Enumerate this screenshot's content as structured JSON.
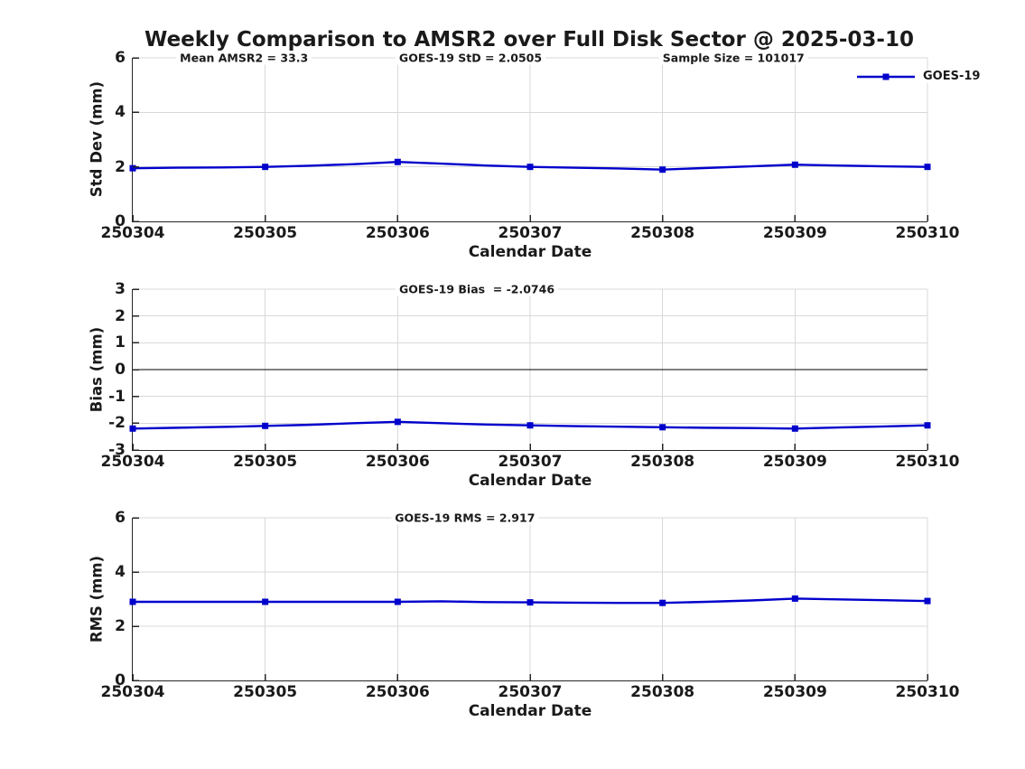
{
  "figure_title": "Weekly Comparison to AMSR2 over Full Disk Sector @ 2025-03-10",
  "colors": {
    "series_line": "#0000CC",
    "grid": "#D9D9D9",
    "axis": "#262626",
    "zero_line": "#000000",
    "text": "#1A1A1A"
  },
  "legend": {
    "label": "GOES-19"
  },
  "x_axis": {
    "label": "Calendar Date",
    "tick_labels": [
      "250304",
      "250305",
      "250306",
      "250307",
      "250308",
      "250309",
      "250310"
    ]
  },
  "chart_data": [
    {
      "type": "line",
      "name": "std-dev",
      "ylabel": "Std Dev (mm)",
      "xlabel": "Calendar Date",
      "ylim": [
        0,
        6
      ],
      "yticks": [
        0,
        2,
        4,
        6
      ],
      "grid": true,
      "annotations": [
        {
          "text": "Mean AMSR2 = 33.3",
          "x_pct": 14
        },
        {
          "text": "GOES-19 StD = 2.0505",
          "x_pct": 42.5
        },
        {
          "text": "Sample Size = 101017",
          "x_pct": 75.6
        }
      ],
      "series": [
        {
          "name": "GOES-19",
          "marker": "square",
          "categories": [
            "250304",
            "250305",
            "250306",
            "250307",
            "250308",
            "250309",
            "250310"
          ],
          "values": [
            1.95,
            2.0,
            2.18,
            2.0,
            1.9,
            2.08,
            2.0
          ],
          "line_x": [
            0,
            0.33,
            0.67,
            1,
            1.33,
            1.67,
            2,
            2.33,
            2.67,
            3,
            3.33,
            3.67,
            4,
            4.33,
            4.67,
            5,
            5.33,
            5.67,
            6
          ],
          "line_y": [
            1.95,
            1.97,
            1.98,
            2.0,
            2.04,
            2.1,
            2.18,
            2.12,
            2.05,
            2.0,
            1.97,
            1.94,
            1.9,
            1.96,
            2.02,
            2.08,
            2.05,
            2.02,
            2.0
          ]
        }
      ]
    },
    {
      "type": "line",
      "name": "bias",
      "ylabel": "Bias (mm)",
      "xlabel": "Calendar Date",
      "ylim": [
        -3,
        3
      ],
      "yticks": [
        -3,
        -2,
        -1,
        0,
        1,
        2,
        3
      ],
      "grid": true,
      "zero_line": true,
      "annotations": [
        {
          "text": "GOES-19 Bias  = -2.0746",
          "x_pct": 43.3
        }
      ],
      "series": [
        {
          "name": "GOES-19",
          "marker": "square",
          "categories": [
            "250304",
            "250305",
            "250306",
            "250307",
            "250308",
            "250309",
            "250310"
          ],
          "values": [
            -2.2,
            -2.1,
            -1.95,
            -2.08,
            -2.15,
            -2.2,
            -2.08
          ],
          "line_x": [
            0,
            0.33,
            0.67,
            1,
            1.33,
            1.67,
            2,
            2.33,
            2.67,
            3,
            3.33,
            3.67,
            4,
            4.33,
            4.67,
            5,
            5.33,
            5.67,
            6
          ],
          "line_y": [
            -2.2,
            -2.17,
            -2.14,
            -2.1,
            -2.06,
            -2.0,
            -1.95,
            -2.0,
            -2.05,
            -2.08,
            -2.11,
            -2.13,
            -2.15,
            -2.17,
            -2.18,
            -2.2,
            -2.16,
            -2.12,
            -2.08
          ]
        }
      ]
    },
    {
      "type": "line",
      "name": "rms",
      "ylabel": "RMS (mm)",
      "xlabel": "Calendar Date",
      "ylim": [
        0,
        6
      ],
      "yticks": [
        0,
        2,
        4,
        6
      ],
      "grid": true,
      "annotations": [
        {
          "text": "GOES-19 RMS = 2.917",
          "x_pct": 41.8
        }
      ],
      "series": [
        {
          "name": "GOES-19",
          "marker": "square",
          "categories": [
            "250304",
            "250305",
            "250306",
            "250307",
            "250308",
            "250309",
            "250310"
          ],
          "values": [
            2.9,
            2.9,
            2.9,
            2.88,
            2.86,
            3.02,
            2.93
          ],
          "line_x": [
            0,
            0.33,
            0.67,
            1,
            1.33,
            1.67,
            2,
            2.33,
            2.67,
            3,
            3.33,
            3.67,
            4,
            4.33,
            4.67,
            5,
            5.33,
            5.67,
            6
          ],
          "line_y": [
            2.9,
            2.9,
            2.9,
            2.9,
            2.9,
            2.9,
            2.9,
            2.92,
            2.89,
            2.88,
            2.87,
            2.86,
            2.86,
            2.9,
            2.95,
            3.02,
            2.99,
            2.96,
            2.93
          ]
        }
      ]
    }
  ]
}
